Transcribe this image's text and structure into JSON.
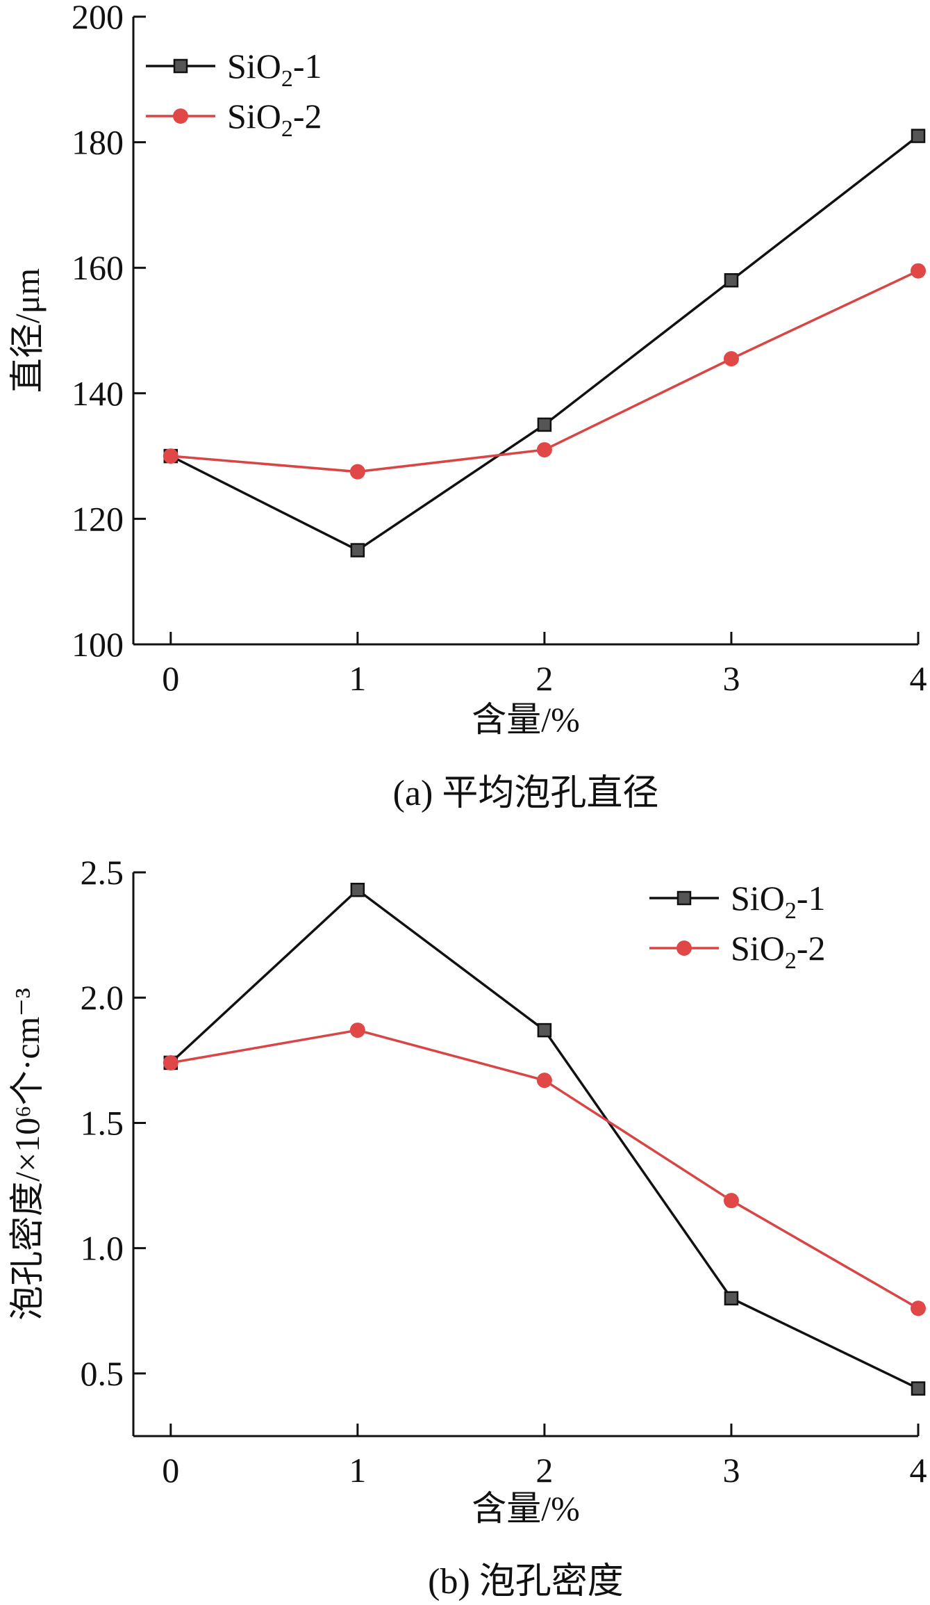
{
  "chart_data": [
    {
      "type": "line",
      "caption": "(a) 平均泡孔直径",
      "xlabel": "含量/%",
      "ylabel": "直径/μm",
      "x": [
        0,
        1,
        2,
        3,
        4
      ],
      "xlim": [
        -0.2,
        4
      ],
      "ylim": [
        100,
        200
      ],
      "yticks": [
        100,
        120,
        140,
        160,
        180,
        200
      ],
      "ytick_labels": [
        "100",
        "120",
        "140",
        "160",
        "180",
        "200"
      ],
      "grid": false,
      "legend_position": "top-left",
      "series": [
        {
          "name": "SiO2-1",
          "name_base": "SiO",
          "name_sub": "2",
          "name_suffix": "-1",
          "marker": "square",
          "color": "#111111",
          "marker_color": "#555555",
          "values": [
            130,
            115,
            135,
            158,
            181
          ]
        },
        {
          "name": "SiO2-2",
          "name_base": "SiO",
          "name_sub": "2",
          "name_suffix": "-2",
          "marker": "circle",
          "color": "#d94545",
          "marker_color": "#e04848",
          "values": [
            130,
            127.5,
            131,
            145.5,
            159.5
          ]
        }
      ]
    },
    {
      "type": "line",
      "caption": "(b) 泡孔密度",
      "xlabel": "含量/%",
      "ylabel": "泡孔密度/×10⁶个·cm⁻³",
      "x": [
        0,
        1,
        2,
        3,
        4
      ],
      "xlim": [
        -0.2,
        4
      ],
      "ylim": [
        0.25,
        2.5
      ],
      "yticks": [
        0.5,
        1.0,
        1.5,
        2.0,
        2.5
      ],
      "ytick_labels": [
        "0.5",
        "1.0",
        "1.5",
        "2.0",
        "2.5"
      ],
      "grid": false,
      "legend_position": "top-right",
      "series": [
        {
          "name": "SiO2-1",
          "name_base": "SiO",
          "name_sub": "2",
          "name_suffix": "-1",
          "marker": "square",
          "color": "#111111",
          "marker_color": "#555555",
          "values": [
            1.74,
            2.43,
            1.87,
            0.8,
            0.44
          ]
        },
        {
          "name": "SiO2-2",
          "name_base": "SiO",
          "name_sub": "2",
          "name_suffix": "-2",
          "marker": "circle",
          "color": "#d94545",
          "marker_color": "#e04848",
          "values": [
            1.74,
            1.87,
            1.67,
            1.19,
            0.76
          ]
        }
      ]
    }
  ]
}
